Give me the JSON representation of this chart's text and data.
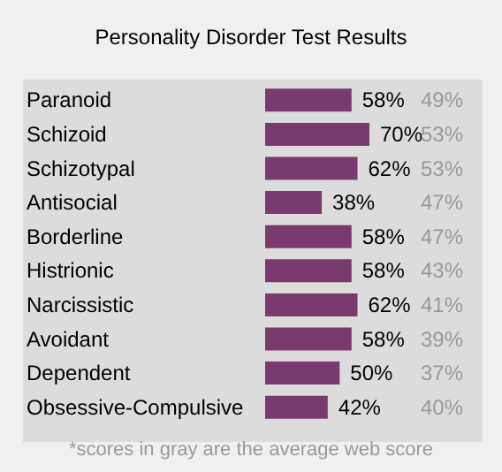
{
  "chart_data": {
    "type": "bar",
    "orientation": "horizontal",
    "title": "Personality Disorder Test Results",
    "categories": [
      "Paranoid",
      "Schizoid",
      "Schizotypal",
      "Antisocial",
      "Borderline",
      "Histrionic",
      "Narcissistic",
      "Avoidant",
      "Dependent",
      "Obsessive-Compulsive"
    ],
    "series": [
      {
        "color": "#7a3a6e",
        "values": [
          58,
          70,
          62,
          38,
          58,
          58,
          62,
          58,
          50,
          42
        ],
        "value_labels": [
          "58%",
          "70%",
          "62%",
          "38%",
          "58%",
          "58%",
          "62%",
          "58%",
          "50%",
          "42%"
        ]
      }
    ],
    "annotations": [
      "49%",
      "53%",
      "53%",
      "47%",
      "47%",
      "43%",
      "41%",
      "39%",
      "37%",
      "40%",
      "*scores in gray are the average web score"
    ]
  }
}
